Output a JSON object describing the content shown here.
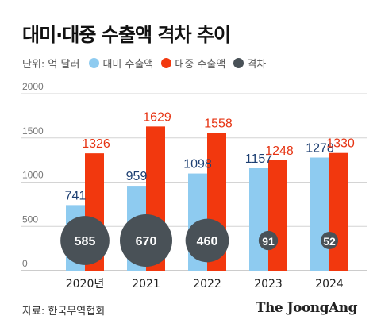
{
  "title": "대미·대중 수출액 격차 추이",
  "legend": {
    "unit": "단위: 억 달러",
    "items": [
      {
        "label": "대미 수출액",
        "color": "#8ecbf0"
      },
      {
        "label": "대중 수출액",
        "color": "#f2380e"
      },
      {
        "label": "격차",
        "color": "#495157"
      }
    ]
  },
  "source": "자료: 한국무역협회",
  "brand": "The JoongAng",
  "chart_data": {
    "type": "bar",
    "categories": [
      "2020년",
      "2021",
      "2022",
      "2023",
      "2024"
    ],
    "series": [
      {
        "name": "대미 수출액",
        "values": [
          741,
          959,
          1098,
          1157,
          1278
        ],
        "color": "#8ecbf0",
        "label_color": "#1d3f72"
      },
      {
        "name": "대중 수출액",
        "values": [
          1326,
          1629,
          1558,
          1248,
          1330
        ],
        "color": "#f2380e",
        "label_color": "#e63312"
      },
      {
        "name": "격차",
        "values": [
          585,
          670,
          460,
          91,
          52
        ],
        "color": "#495157"
      }
    ],
    "yticks": [
      0,
      500,
      1000,
      1500,
      2000
    ],
    "ylim": [
      0,
      2000
    ],
    "grid": true
  }
}
